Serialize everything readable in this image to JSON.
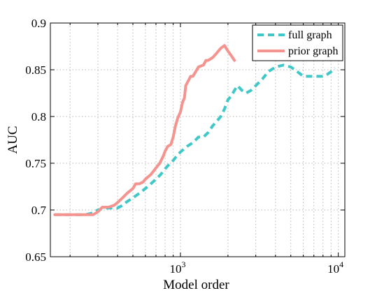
{
  "chart_data": {
    "type": "line",
    "xlabel": "Model order",
    "ylabel": "AUC",
    "xscale": "log",
    "xlim": [
      150,
      11000
    ],
    "ylim": [
      0.65,
      0.9
    ],
    "yticks": [
      0.65,
      0.7,
      0.75,
      0.8,
      0.85,
      0.9
    ],
    "ytick_labels": [
      "0.65",
      "0.7",
      "0.75",
      "0.8",
      "0.85",
      "0.9"
    ],
    "xticks": [
      1000,
      10000
    ],
    "xtick_labels": [
      {
        "base": "10",
        "exp": "3"
      },
      {
        "base": "10",
        "exp": "4"
      }
    ],
    "grid": true,
    "legend_position": "top-right",
    "series": [
      {
        "name": "full graph",
        "color": "#40c8c8",
        "style": "dashed",
        "points": [
          [
            160,
            0.695
          ],
          [
            200,
            0.695
          ],
          [
            250,
            0.695
          ],
          [
            280,
            0.697
          ],
          [
            300,
            0.7
          ],
          [
            330,
            0.702
          ],
          [
            370,
            0.702
          ],
          [
            400,
            0.702
          ],
          [
            430,
            0.705
          ],
          [
            460,
            0.709
          ],
          [
            500,
            0.713
          ],
          [
            550,
            0.718
          ],
          [
            600,
            0.723
          ],
          [
            650,
            0.728
          ],
          [
            700,
            0.733
          ],
          [
            750,
            0.738
          ],
          [
            800,
            0.744
          ],
          [
            850,
            0.749
          ],
          [
            900,
            0.753
          ],
          [
            950,
            0.758
          ],
          [
            1000,
            0.762
          ],
          [
            1100,
            0.768
          ],
          [
            1200,
            0.772
          ],
          [
            1300,
            0.778
          ],
          [
            1400,
            0.778
          ],
          [
            1500,
            0.783
          ],
          [
            1600,
            0.79
          ],
          [
            1700,
            0.795
          ],
          [
            1800,
            0.8
          ],
          [
            1900,
            0.808
          ],
          [
            2000,
            0.818
          ],
          [
            2100,
            0.822
          ],
          [
            2200,
            0.828
          ],
          [
            2300,
            0.833
          ],
          [
            2450,
            0.828
          ],
          [
            2600,
            0.825
          ],
          [
            2800,
            0.828
          ],
          [
            3000,
            0.833
          ],
          [
            3300,
            0.84
          ],
          [
            3600,
            0.848
          ],
          [
            4000,
            0.853
          ],
          [
            4500,
            0.855
          ],
          [
            5000,
            0.853
          ],
          [
            5500,
            0.848
          ],
          [
            6000,
            0.843
          ],
          [
            6500,
            0.843
          ],
          [
            7000,
            0.843
          ],
          [
            7500,
            0.843
          ],
          [
            8000,
            0.843
          ],
          [
            8500,
            0.845
          ],
          [
            9000,
            0.848
          ],
          [
            9500,
            0.852
          ]
        ]
      },
      {
        "name": "prior graph",
        "color": "#f5938f",
        "style": "solid",
        "points": [
          [
            160,
            0.695
          ],
          [
            200,
            0.695
          ],
          [
            250,
            0.695
          ],
          [
            280,
            0.695
          ],
          [
            300,
            0.698
          ],
          [
            320,
            0.703
          ],
          [
            350,
            0.703
          ],
          [
            380,
            0.705
          ],
          [
            400,
            0.708
          ],
          [
            430,
            0.713
          ],
          [
            460,
            0.718
          ],
          [
            500,
            0.723
          ],
          [
            520,
            0.728
          ],
          [
            550,
            0.728
          ],
          [
            580,
            0.73
          ],
          [
            600,
            0.733
          ],
          [
            650,
            0.738
          ],
          [
            700,
            0.745
          ],
          [
            740,
            0.75
          ],
          [
            780,
            0.758
          ],
          [
            800,
            0.763
          ],
          [
            830,
            0.768
          ],
          [
            870,
            0.77
          ],
          [
            900,
            0.778
          ],
          [
            930,
            0.79
          ],
          [
            960,
            0.798
          ],
          [
            1000,
            0.805
          ],
          [
            1030,
            0.815
          ],
          [
            1060,
            0.82
          ],
          [
            1080,
            0.833
          ],
          [
            1120,
            0.838
          ],
          [
            1160,
            0.843
          ],
          [
            1200,
            0.843
          ],
          [
            1250,
            0.848
          ],
          [
            1300,
            0.853
          ],
          [
            1400,
            0.855
          ],
          [
            1450,
            0.86
          ],
          [
            1500,
            0.86
          ],
          [
            1600,
            0.863
          ],
          [
            1700,
            0.868
          ],
          [
            1800,
            0.873
          ],
          [
            1900,
            0.876
          ],
          [
            2000,
            0.87
          ],
          [
            2100,
            0.865
          ],
          [
            2200,
            0.86
          ]
        ]
      }
    ]
  }
}
